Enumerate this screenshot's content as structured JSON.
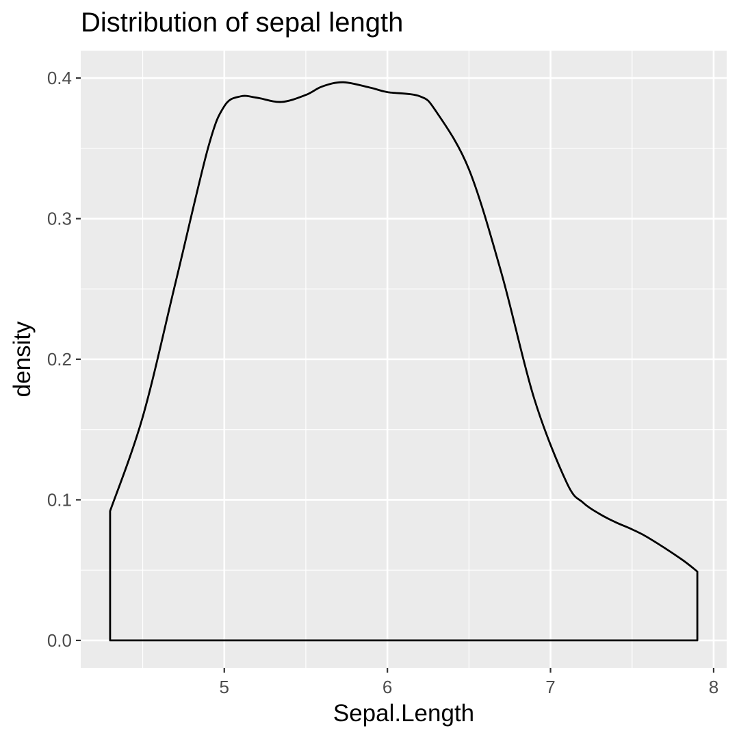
{
  "chart_data": {
    "type": "area",
    "title": "Distribution of sepal length",
    "xlabel": "Sepal.Length",
    "ylabel": "density",
    "xlim": [
      4.12,
      8.08
    ],
    "ylim": [
      -0.0195,
      0.4195
    ],
    "x_ticks": [
      5,
      6,
      7,
      8
    ],
    "x_tick_labels": [
      "5",
      "6",
      "7",
      "8"
    ],
    "y_ticks": [
      0.0,
      0.1,
      0.2,
      0.3,
      0.4
    ],
    "y_tick_labels": [
      "0.0",
      "0.1",
      "0.2",
      "0.3",
      "0.4"
    ],
    "grid": true,
    "colors": {
      "panel_background": "#EBEBEB",
      "grid": "#FFFFFF",
      "line": "#000000",
      "tick_label": "#4D4D4D"
    },
    "series": [
      {
        "x": [
          4.3,
          4.5,
          4.7,
          4.9,
          5.0,
          5.1,
          5.2,
          5.35,
          5.5,
          5.6,
          5.73,
          5.9,
          6.0,
          6.2,
          6.3,
          6.5,
          6.7,
          6.9,
          7.1,
          7.2,
          7.3,
          7.4,
          7.5,
          7.6,
          7.8,
          7.9
        ],
        "y": [
          0.092,
          0.159,
          0.254,
          0.35,
          0.38,
          0.387,
          0.386,
          0.383,
          0.388,
          0.394,
          0.397,
          0.393,
          0.39,
          0.387,
          0.376,
          0.335,
          0.261,
          0.172,
          0.112,
          0.098,
          0.09,
          0.084,
          0.079,
          0.073,
          0.058,
          0.049
        ]
      }
    ]
  }
}
